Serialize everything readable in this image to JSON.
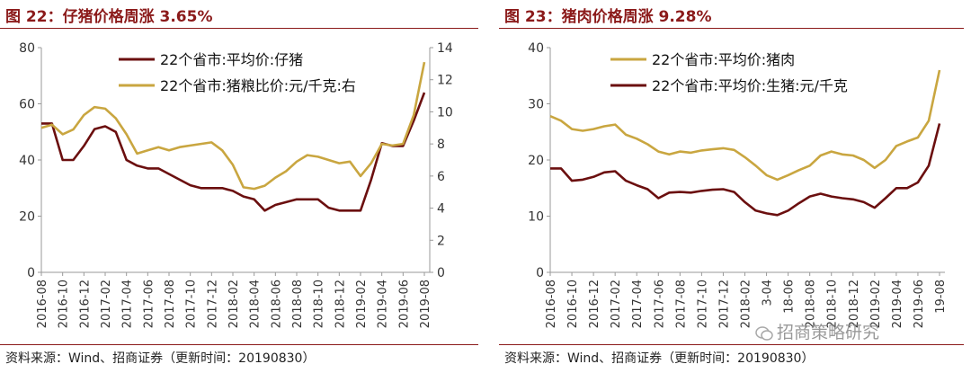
{
  "charts": [
    {
      "title": "图 22：仔猪价格周涨 3.65%",
      "source": "资料来源：Wind、招商证券（更新时间：20190830）",
      "chart_data": {
        "type": "line",
        "x_ticks": [
          "2016-08",
          "2016-10",
          "2016-12",
          "2017-02",
          "2017-04",
          "2017-06",
          "2017-08",
          "2017-10",
          "2017-12",
          "2018-02",
          "2018-04",
          "2018-06",
          "2018-08",
          "2018-10",
          "2018-12",
          "2019-02",
          "2019-04",
          "2019-06",
          "2019-08"
        ],
        "y_left": {
          "min": 0,
          "max": 80,
          "ticks": [
            0,
            20,
            40,
            60,
            80
          ]
        },
        "y_right": {
          "min": 0,
          "max": 14,
          "ticks": [
            0,
            2,
            4,
            6,
            8,
            10,
            12,
            14
          ]
        },
        "legend_position": "top-right",
        "grid": false,
        "series": [
          {
            "name": "22个省市:平均价:仔猪",
            "axis": "left",
            "color": "#6B0F0F",
            "x": [
              "2016-08",
              "2016-09",
              "2016-10",
              "2016-11",
              "2016-12",
              "2017-01",
              "2017-02",
              "2017-03",
              "2017-04",
              "2017-05",
              "2017-06",
              "2017-07",
              "2017-08",
              "2017-09",
              "2017-10",
              "2017-11",
              "2017-12",
              "2018-01",
              "2018-02",
              "2018-03",
              "2018-04",
              "2018-05",
              "2018-06",
              "2018-07",
              "2018-08",
              "2018-09",
              "2018-10",
              "2018-11",
              "2018-12",
              "2019-01",
              "2019-02",
              "2019-03",
              "2019-04",
              "2019-05",
              "2019-06",
              "2019-07",
              "2019-08"
            ],
            "y": [
              53,
              53,
              40,
              40,
              45,
              51,
              52,
              50,
              40,
              38,
              37,
              37,
              35,
              33,
              31,
              30,
              30,
              30,
              29,
              27,
              26,
              22,
              24,
              25,
              26,
              26,
              26,
              23,
              22,
              22,
              22,
              33,
              46,
              45,
              45,
              54,
              64
            ]
          },
          {
            "name": "22个省市:猪粮比价:元/千克:右",
            "axis": "right",
            "color": "#C9A640",
            "x": [
              "2016-08",
              "2016-09",
              "2016-10",
              "2016-11",
              "2016-12",
              "2017-01",
              "2017-02",
              "2017-03",
              "2017-04",
              "2017-05",
              "2017-06",
              "2017-07",
              "2017-08",
              "2017-09",
              "2017-10",
              "2017-11",
              "2017-12",
              "2018-01",
              "2018-02",
              "2018-03",
              "2018-04",
              "2018-05",
              "2018-06",
              "2018-07",
              "2018-08",
              "2018-09",
              "2018-10",
              "2018-11",
              "2018-12",
              "2019-01",
              "2019-02",
              "2019-03",
              "2019-04",
              "2019-05",
              "2019-06",
              "2019-07",
              "2019-08"
            ],
            "y": [
              9.0,
              9.2,
              8.6,
              8.9,
              9.8,
              10.3,
              10.2,
              9.6,
              8.6,
              7.4,
              7.6,
              7.8,
              7.6,
              7.8,
              7.9,
              8.0,
              8.1,
              7.6,
              6.7,
              5.3,
              5.2,
              5.4,
              5.9,
              6.3,
              6.9,
              7.3,
              7.2,
              7.0,
              6.8,
              6.9,
              6.0,
              6.8,
              8.0,
              7.9,
              8.0,
              9.8,
              13.1
            ]
          }
        ]
      }
    },
    {
      "title": "图 23：猪肉价格周涨 9.28%",
      "source": "资料来源：Wind、招商证券（更新时间：20190830）",
      "chart_data": {
        "type": "line",
        "x_ticks": [
          "2016-08",
          "2016-10",
          "2016-12",
          "2017-02",
          "2017-04",
          "2017-06",
          "2017-08",
          "2017-10",
          "2017-12",
          "2018-02",
          "2018-04",
          "2018-06",
          "2018-08",
          "2018-10",
          "2018-12",
          "2019-02",
          "2019-04",
          "2019-06",
          "2019-08"
        ],
        "x_ticks_display": [
          "2016-08",
          "2016-10",
          "2016-12",
          "2017-02",
          "2017-04",
          "2017-06",
          "2017-08",
          "2017-10",
          "2017-12",
          "2018-02",
          "3-04",
          "18-06",
          "2018-08",
          "2018-10",
          "2018-12",
          "2019-02",
          "2019-04",
          "2019-06",
          "19-08"
        ],
        "y_left": {
          "min": 0,
          "max": 40,
          "ticks": [
            0,
            10,
            20,
            30,
            40
          ]
        },
        "legend_position": "top-right",
        "grid": false,
        "series": [
          {
            "name": "22个省市:平均价:猪肉",
            "axis": "left",
            "color": "#C9A640",
            "x": [
              "2016-08",
              "2016-09",
              "2016-10",
              "2016-11",
              "2016-12",
              "2017-01",
              "2017-02",
              "2017-03",
              "2017-04",
              "2017-05",
              "2017-06",
              "2017-07",
              "2017-08",
              "2017-09",
              "2017-10",
              "2017-11",
              "2017-12",
              "2018-01",
              "2018-02",
              "2018-03",
              "2018-04",
              "2018-05",
              "2018-06",
              "2018-07",
              "2018-08",
              "2018-09",
              "2018-10",
              "2018-11",
              "2018-12",
              "2019-01",
              "2019-02",
              "2019-03",
              "2019-04",
              "2019-05",
              "2019-06",
              "2019-07",
              "2019-08"
            ],
            "y": [
              27.8,
              27.0,
              25.5,
              25.2,
              25.5,
              26.0,
              26.3,
              24.5,
              23.8,
              22.8,
              21.5,
              21.0,
              21.5,
              21.3,
              21.7,
              21.9,
              22.1,
              21.8,
              20.5,
              19.0,
              17.3,
              16.5,
              17.3,
              18.2,
              19.0,
              20.8,
              21.5,
              21.0,
              20.8,
              20.0,
              18.6,
              20.0,
              22.5,
              23.3,
              24.0,
              27.0,
              36.0
            ]
          },
          {
            "name": "22个省市:平均价:生猪:元/千克",
            "axis": "left",
            "color": "#6B0F0F",
            "x": [
              "2016-08",
              "2016-09",
              "2016-10",
              "2016-11",
              "2016-12",
              "2017-01",
              "2017-02",
              "2017-03",
              "2017-04",
              "2017-05",
              "2017-06",
              "2017-07",
              "2017-08",
              "2017-09",
              "2017-10",
              "2017-11",
              "2017-12",
              "2018-01",
              "2018-02",
              "2018-03",
              "2018-04",
              "2018-05",
              "2018-06",
              "2018-07",
              "2018-08",
              "2018-09",
              "2018-10",
              "2018-11",
              "2018-12",
              "2019-01",
              "2019-02",
              "2019-03",
              "2019-04",
              "2019-05",
              "2019-06",
              "2019-07",
              "2019-08"
            ],
            "y": [
              18.5,
              18.5,
              16.3,
              16.5,
              17.0,
              17.8,
              18.0,
              16.3,
              15.5,
              14.8,
              13.2,
              14.2,
              14.3,
              14.2,
              14.5,
              14.7,
              14.8,
              14.3,
              12.5,
              11.0,
              10.5,
              10.2,
              11.0,
              12.3,
              13.5,
              14.0,
              13.5,
              13.2,
              13.0,
              12.5,
              11.5,
              13.2,
              15.0,
              15.0,
              16.0,
              19.0,
              26.5
            ]
          }
        ]
      }
    }
  ],
  "watermark": "招商策略研究"
}
